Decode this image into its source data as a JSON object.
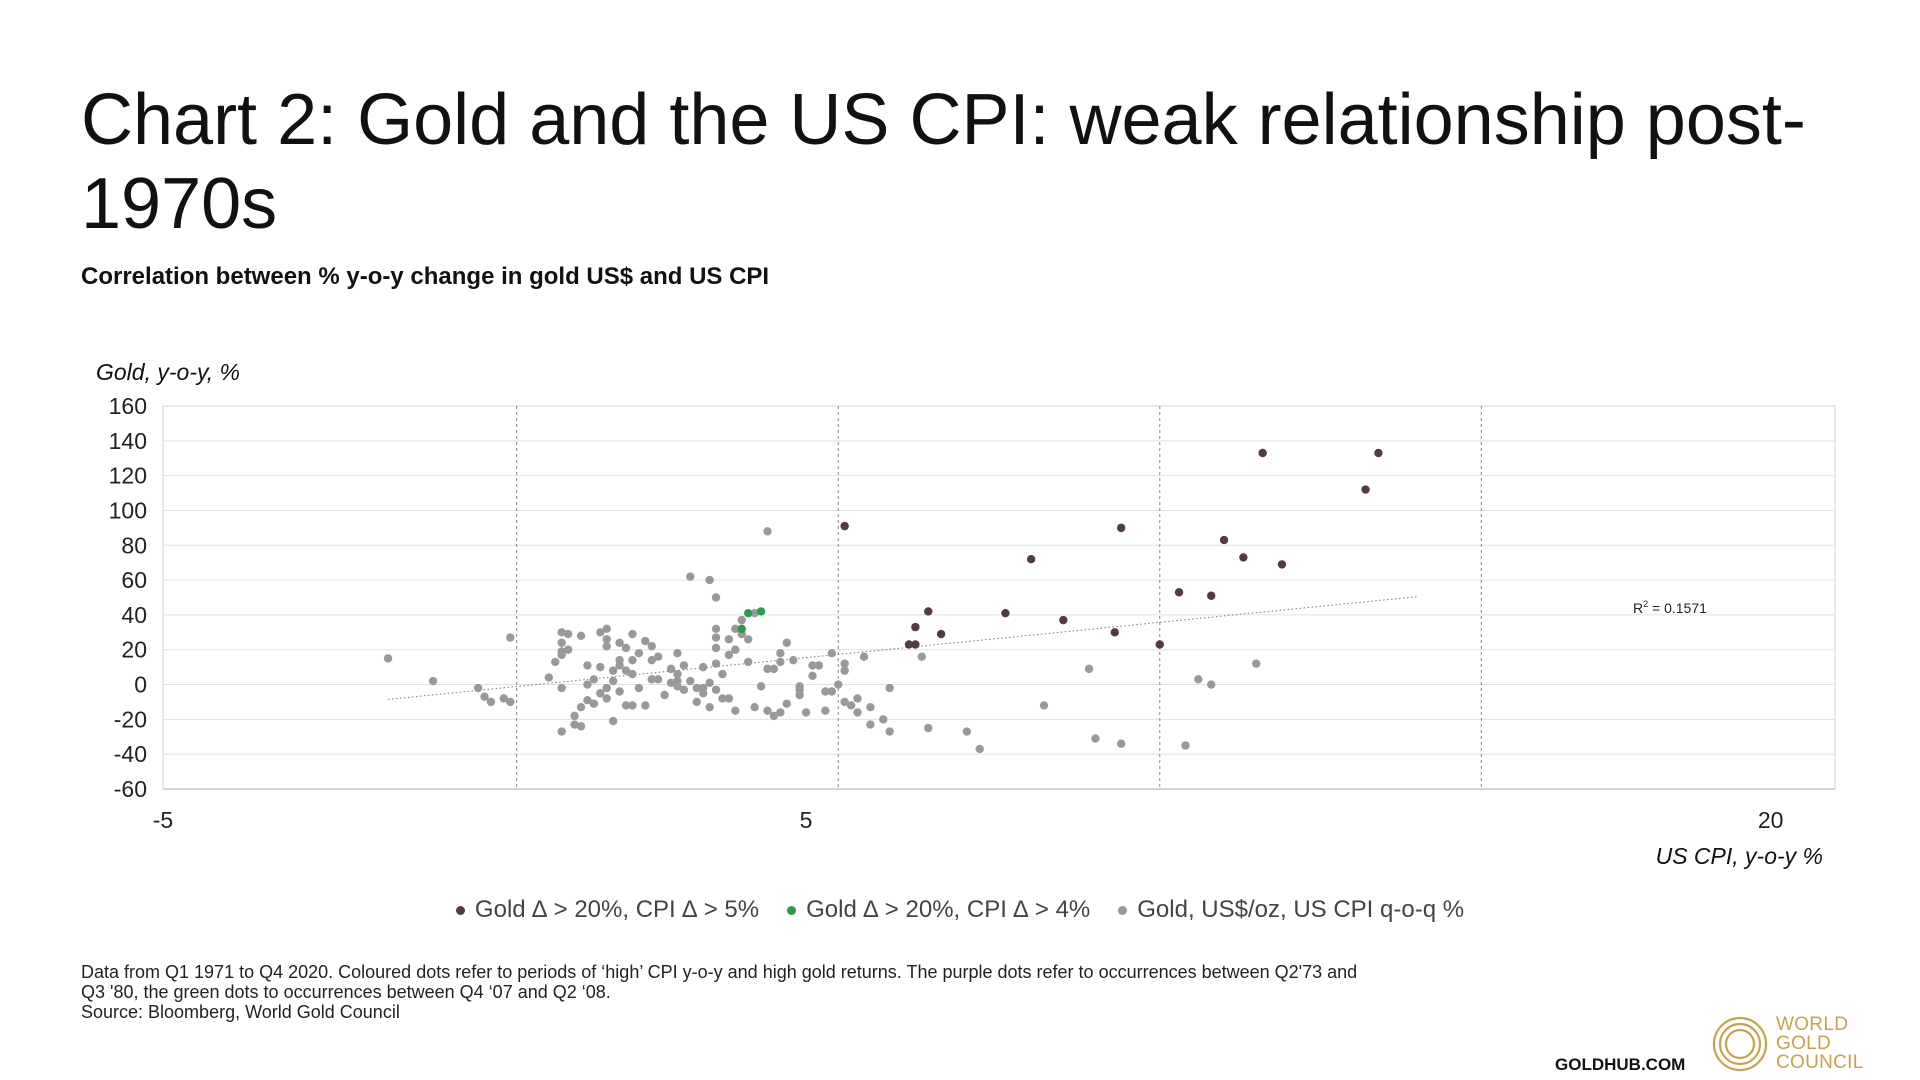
{
  "title": "Chart 2: Gold and the US CPI: weak relationship post-1970s",
  "subtitle": "Correlation between % y-o-y change in gold US$ and US CPI",
  "legend": [
    {
      "label": "Gold ∆ > 20%, CPI ∆ > 5%",
      "color": "#523a4a"
    },
    {
      "label": "Gold ∆ > 20%, CPI ∆ > 4%",
      "color": "#2e9a4f"
    },
    {
      "label": "Gold, US$/oz, US CPI q-o-q %",
      "color": "#999999"
    }
  ],
  "notes": {
    "line1": "Data from Q1 1971 to Q4 2020. Coloured dots refer to periods of ‘high’ CPI y-o-y and high gold returns. The purple dots refer to occurrences between Q2'73 and",
    "line2": "Q3 '80, the green dots to occurrences between Q4 ‘07 and Q2 ‘08.",
    "line3": "Source: Bloomberg, World Gold Council"
  },
  "footer": {
    "site": "GOLDHUB.COM",
    "logo_lines": [
      "WORLD",
      "GOLD",
      "COUNCIL"
    ],
    "logo_color": "#c9a24b"
  },
  "chart_data": {
    "type": "scatter",
    "title": "",
    "ylabel": "Gold, y-o-y, %",
    "xlabel": "US CPI, y-o-y %",
    "xlim": [
      -5,
      21
    ],
    "ylim": [
      -60,
      160
    ],
    "xticks": [
      -5,
      5,
      20
    ],
    "yticks": [
      -60,
      -40,
      -20,
      0,
      20,
      40,
      60,
      80,
      100,
      120,
      140,
      160
    ],
    "vertical_gridlines_x": [
      0.5,
      5.5,
      10.5,
      15.5
    ],
    "grid": true,
    "legend_position": "bottom",
    "annotation": {
      "text_main": "R",
      "text_sup": "2",
      "text_rest": " = 0.1571"
    },
    "trendline": {
      "x": [
        -1.5,
        14.5
      ],
      "y": [
        -8.5,
        50.5
      ]
    },
    "series": [
      {
        "name": "Gold ∆ > 20%, CPI ∆ > 5%",
        "color": "#523a4a",
        "points": [
          [
            5.6,
            91
          ],
          [
            6.6,
            23
          ],
          [
            6.7,
            33
          ],
          [
            6.7,
            23
          ],
          [
            6.9,
            42
          ],
          [
            7.1,
            29
          ],
          [
            8.1,
            41
          ],
          [
            8.5,
            72
          ],
          [
            9.0,
            37
          ],
          [
            9.8,
            30
          ],
          [
            9.9,
            90
          ],
          [
            10.5,
            23
          ],
          [
            10.8,
            53
          ],
          [
            11.3,
            51
          ],
          [
            11.5,
            83
          ],
          [
            11.8,
            73
          ],
          [
            12.1,
            133
          ],
          [
            12.4,
            69
          ],
          [
            13.7,
            112
          ],
          [
            13.9,
            133
          ]
        ]
      },
      {
        "name": "Gold ∆ > 20%, CPI ∆ > 4%",
        "color": "#2e9a4f",
        "points": [
          [
            4.0,
            32
          ],
          [
            4.1,
            41
          ],
          [
            4.3,
            42
          ]
        ]
      },
      {
        "name": "Gold, US$/oz, US CPI q-o-q %",
        "color": "#999999",
        "points": [
          [
            -1.5,
            15
          ],
          [
            -0.8,
            2
          ],
          [
            -0.1,
            -2
          ],
          [
            0.0,
            -7
          ],
          [
            0.1,
            -10
          ],
          [
            0.3,
            -8
          ],
          [
            0.4,
            27
          ],
          [
            0.4,
            -10
          ],
          [
            1.0,
            4
          ],
          [
            1.1,
            13
          ],
          [
            1.2,
            30
          ],
          [
            1.2,
            24
          ],
          [
            1.2,
            19
          ],
          [
            1.2,
            17
          ],
          [
            1.3,
            29
          ],
          [
            1.3,
            20
          ],
          [
            1.2,
            -2
          ],
          [
            1.2,
            -27
          ],
          [
            1.4,
            -18
          ],
          [
            1.4,
            -23
          ],
          [
            1.5,
            -24
          ],
          [
            1.5,
            -13
          ],
          [
            1.6,
            0
          ],
          [
            1.5,
            28
          ],
          [
            1.6,
            -9
          ],
          [
            1.6,
            11
          ],
          [
            1.7,
            -11
          ],
          [
            1.7,
            3
          ],
          [
            1.8,
            -5
          ],
          [
            1.8,
            10
          ],
          [
            1.8,
            30
          ],
          [
            1.9,
            32
          ],
          [
            1.9,
            26
          ],
          [
            1.9,
            22
          ],
          [
            1.9,
            -8
          ],
          [
            1.9,
            -2
          ],
          [
            2.0,
            -21
          ],
          [
            2.0,
            8
          ],
          [
            2.0,
            2
          ],
          [
            2.1,
            11
          ],
          [
            2.1,
            -4
          ],
          [
            2.1,
            14
          ],
          [
            2.1,
            24
          ],
          [
            2.2,
            21
          ],
          [
            2.2,
            -12
          ],
          [
            2.2,
            8
          ],
          [
            2.3,
            29
          ],
          [
            2.3,
            14
          ],
          [
            2.3,
            6
          ],
          [
            2.3,
            -12
          ],
          [
            2.4,
            18
          ],
          [
            2.4,
            -2
          ],
          [
            2.5,
            25
          ],
          [
            2.5,
            -12
          ],
          [
            2.6,
            3
          ],
          [
            2.6,
            22
          ],
          [
            2.6,
            14
          ],
          [
            2.7,
            3
          ],
          [
            2.7,
            16
          ],
          [
            2.8,
            -6
          ],
          [
            2.9,
            1
          ],
          [
            2.9,
            9
          ],
          [
            3.0,
            -1
          ],
          [
            3.0,
            6
          ],
          [
            3.0,
            2
          ],
          [
            3.0,
            18
          ],
          [
            3.1,
            -3
          ],
          [
            3.1,
            11
          ],
          [
            3.2,
            2
          ],
          [
            3.2,
            62
          ],
          [
            3.3,
            -10
          ],
          [
            3.3,
            -2
          ],
          [
            3.4,
            10
          ],
          [
            3.4,
            -5
          ],
          [
            3.4,
            -2
          ],
          [
            3.5,
            60
          ],
          [
            3.5,
            -13
          ],
          [
            3.5,
            1
          ],
          [
            3.6,
            50
          ],
          [
            3.6,
            32
          ],
          [
            3.6,
            27
          ],
          [
            3.6,
            21
          ],
          [
            3.6,
            12
          ],
          [
            3.6,
            -3
          ],
          [
            3.7,
            -8
          ],
          [
            3.7,
            6
          ],
          [
            3.8,
            26
          ],
          [
            3.8,
            17
          ],
          [
            3.8,
            -8
          ],
          [
            3.9,
            32
          ],
          [
            3.9,
            -15
          ],
          [
            3.9,
            20
          ],
          [
            4.0,
            37
          ],
          [
            4.0,
            29
          ],
          [
            4.1,
            26
          ],
          [
            4.1,
            13
          ],
          [
            4.2,
            41
          ],
          [
            4.2,
            -13
          ],
          [
            4.3,
            -1
          ],
          [
            4.4,
            88
          ],
          [
            4.4,
            9
          ],
          [
            4.4,
            -15
          ],
          [
            4.5,
            -18
          ],
          [
            4.5,
            9
          ],
          [
            4.6,
            18
          ],
          [
            4.6,
            13
          ],
          [
            4.6,
            -16
          ],
          [
            4.7,
            24
          ],
          [
            4.7,
            -11
          ],
          [
            4.8,
            14
          ],
          [
            4.9,
            -1
          ],
          [
            4.9,
            -6
          ],
          [
            4.9,
            -3
          ],
          [
            5.0,
            -16
          ],
          [
            5.1,
            11
          ],
          [
            5.1,
            5
          ],
          [
            5.2,
            11
          ],
          [
            5.3,
            -15
          ],
          [
            5.3,
            -4
          ],
          [
            5.4,
            -4
          ],
          [
            5.4,
            18
          ],
          [
            5.5,
            0
          ],
          [
            5.6,
            12
          ],
          [
            5.6,
            8
          ],
          [
            5.6,
            -10
          ],
          [
            5.7,
            -12
          ],
          [
            5.8,
            -8
          ],
          [
            5.8,
            -16
          ],
          [
            5.9,
            16
          ],
          [
            6.0,
            -13
          ],
          [
            6.0,
            -23
          ],
          [
            6.2,
            -20
          ],
          [
            6.3,
            -27
          ],
          [
            6.3,
            -2
          ],
          [
            6.8,
            16
          ],
          [
            6.9,
            -25
          ],
          [
            7.5,
            -27
          ],
          [
            7.7,
            -37
          ],
          [
            8.7,
            -12
          ],
          [
            9.4,
            9
          ],
          [
            9.5,
            -31
          ],
          [
            9.9,
            -34
          ],
          [
            10.9,
            -35
          ],
          [
            11.1,
            3
          ],
          [
            11.3,
            0
          ],
          [
            12.0,
            12
          ]
        ]
      }
    ]
  }
}
